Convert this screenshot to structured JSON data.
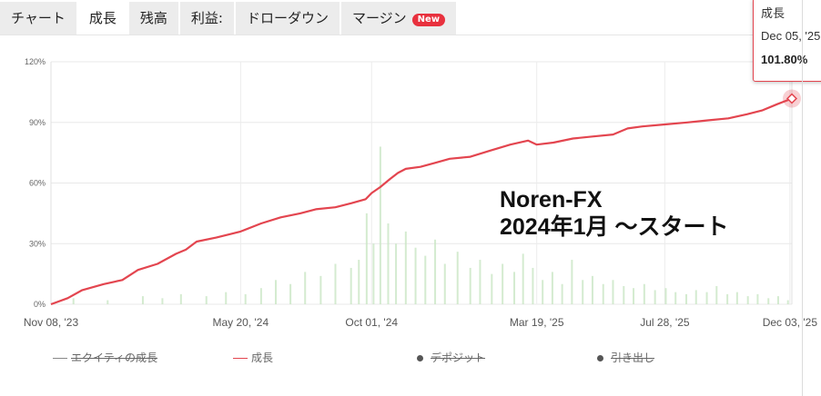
{
  "tabs": [
    {
      "label": "チャート",
      "active": false
    },
    {
      "label": "成長",
      "active": true
    },
    {
      "label": "残高",
      "active": false
    },
    {
      "label": "利益:",
      "active": false
    },
    {
      "label": "ドローダウン",
      "active": false
    },
    {
      "label": "マージン",
      "active": false,
      "badge": "New"
    }
  ],
  "overlay_text": {
    "line1": "Noren-FX",
    "line2": "2024年1月 ～スタート"
  },
  "tooltip": {
    "series": "成長",
    "date": "Dec 05, '25",
    "value": "101.80%"
  },
  "legend": [
    {
      "label": "エクイティの成長",
      "color": "#888888",
      "kind": "line",
      "hidden": true
    },
    {
      "label": "成長",
      "color": "#e3454f",
      "kind": "line",
      "hidden": false
    },
    {
      "label": "デポジット",
      "color": "#555555",
      "kind": "dot",
      "hidden": true
    },
    {
      "label": "引き出し",
      "color": "#555555",
      "kind": "dot",
      "hidden": true
    }
  ],
  "chart_data": {
    "type": "line",
    "x_type": "date",
    "xlim": [
      "2023-11-08",
      "2025-12-05"
    ],
    "ylim": [
      0,
      120
    ],
    "x_tick_labels": [
      "Nov 08, '23",
      "May 20, '24",
      "Oct 01, '24",
      "Mar 19, '25",
      "Jul 28, '25",
      "Dec 03, '25"
    ],
    "x_tick_dates": [
      "2023-11-08",
      "2024-05-20",
      "2024-10-01",
      "2025-03-19",
      "2025-07-28",
      "2025-12-03"
    ],
    "y_ticks": [
      0,
      30,
      60,
      90,
      120
    ],
    "y_tick_labels": [
      "0%",
      "30%",
      "60%",
      "90%",
      "120%"
    ],
    "grid": true,
    "line_color": "#e3454f",
    "series": [
      {
        "name": "成長",
        "x": [
          "2023-11-08",
          "2023-11-25",
          "2023-12-10",
          "2024-01-01",
          "2024-01-20",
          "2024-02-05",
          "2024-02-25",
          "2024-03-15",
          "2024-03-25",
          "2024-04-05",
          "2024-04-25",
          "2024-05-20",
          "2024-06-10",
          "2024-06-30",
          "2024-07-20",
          "2024-08-05",
          "2024-08-25",
          "2024-09-10",
          "2024-09-25",
          "2024-10-01",
          "2024-10-10",
          "2024-10-20",
          "2024-10-28",
          "2024-11-05",
          "2024-11-20",
          "2024-12-05",
          "2024-12-20",
          "2025-01-10",
          "2025-01-30",
          "2025-02-20",
          "2025-03-10",
          "2025-03-19",
          "2025-04-05",
          "2025-04-25",
          "2025-05-15",
          "2025-06-05",
          "2025-06-20",
          "2025-07-05",
          "2025-07-28",
          "2025-08-20",
          "2025-09-10",
          "2025-10-01",
          "2025-10-20",
          "2025-11-05",
          "2025-11-20",
          "2025-12-05"
        ],
        "y": [
          0,
          3,
          7,
          10,
          12,
          17,
          20,
          25,
          27,
          31,
          33,
          36,
          40,
          43,
          45,
          47,
          48,
          50,
          52,
          55,
          58,
          62,
          65,
          67,
          68,
          70,
          72,
          73,
          76,
          79,
          81,
          79,
          80,
          82,
          83,
          84,
          87,
          88,
          89,
          90,
          91,
          92,
          94,
          96,
          99,
          101.8
        ]
      }
    ],
    "bars": {
      "color": "#c9e6c4",
      "x": [
        "2023-12-01",
        "2024-01-05",
        "2024-02-10",
        "2024-03-01",
        "2024-03-20",
        "2024-04-15",
        "2024-05-05",
        "2024-05-25",
        "2024-06-10",
        "2024-06-25",
        "2024-07-10",
        "2024-07-25",
        "2024-08-10",
        "2024-08-25",
        "2024-09-10",
        "2024-09-18",
        "2024-09-26",
        "2024-10-03",
        "2024-10-10",
        "2024-10-18",
        "2024-10-26",
        "2024-11-05",
        "2024-11-15",
        "2024-11-25",
        "2024-12-05",
        "2024-12-15",
        "2024-12-28",
        "2025-01-10",
        "2025-01-20",
        "2025-02-01",
        "2025-02-12",
        "2025-02-24",
        "2025-03-05",
        "2025-03-15",
        "2025-03-25",
        "2025-04-04",
        "2025-04-14",
        "2025-04-24",
        "2025-05-05",
        "2025-05-15",
        "2025-05-26",
        "2025-06-05",
        "2025-06-16",
        "2025-06-26",
        "2025-07-07",
        "2025-07-18",
        "2025-07-29",
        "2025-08-08",
        "2025-08-19",
        "2025-08-29",
        "2025-09-09",
        "2025-09-19",
        "2025-09-30",
        "2025-10-10",
        "2025-10-21",
        "2025-10-31",
        "2025-11-11",
        "2025-11-21",
        "2025-12-01"
      ],
      "y": [
        3,
        2,
        4,
        3,
        5,
        4,
        6,
        5,
        8,
        12,
        10,
        16,
        14,
        20,
        18,
        22,
        45,
        30,
        78,
        40,
        30,
        36,
        28,
        24,
        32,
        20,
        26,
        18,
        22,
        15,
        20,
        16,
        25,
        18,
        12,
        16,
        10,
        22,
        12,
        14,
        10,
        12,
        9,
        8,
        10,
        7,
        8,
        6,
        5,
        7,
        6,
        9,
        5,
        6,
        4,
        5,
        3,
        4,
        2
      ]
    }
  }
}
